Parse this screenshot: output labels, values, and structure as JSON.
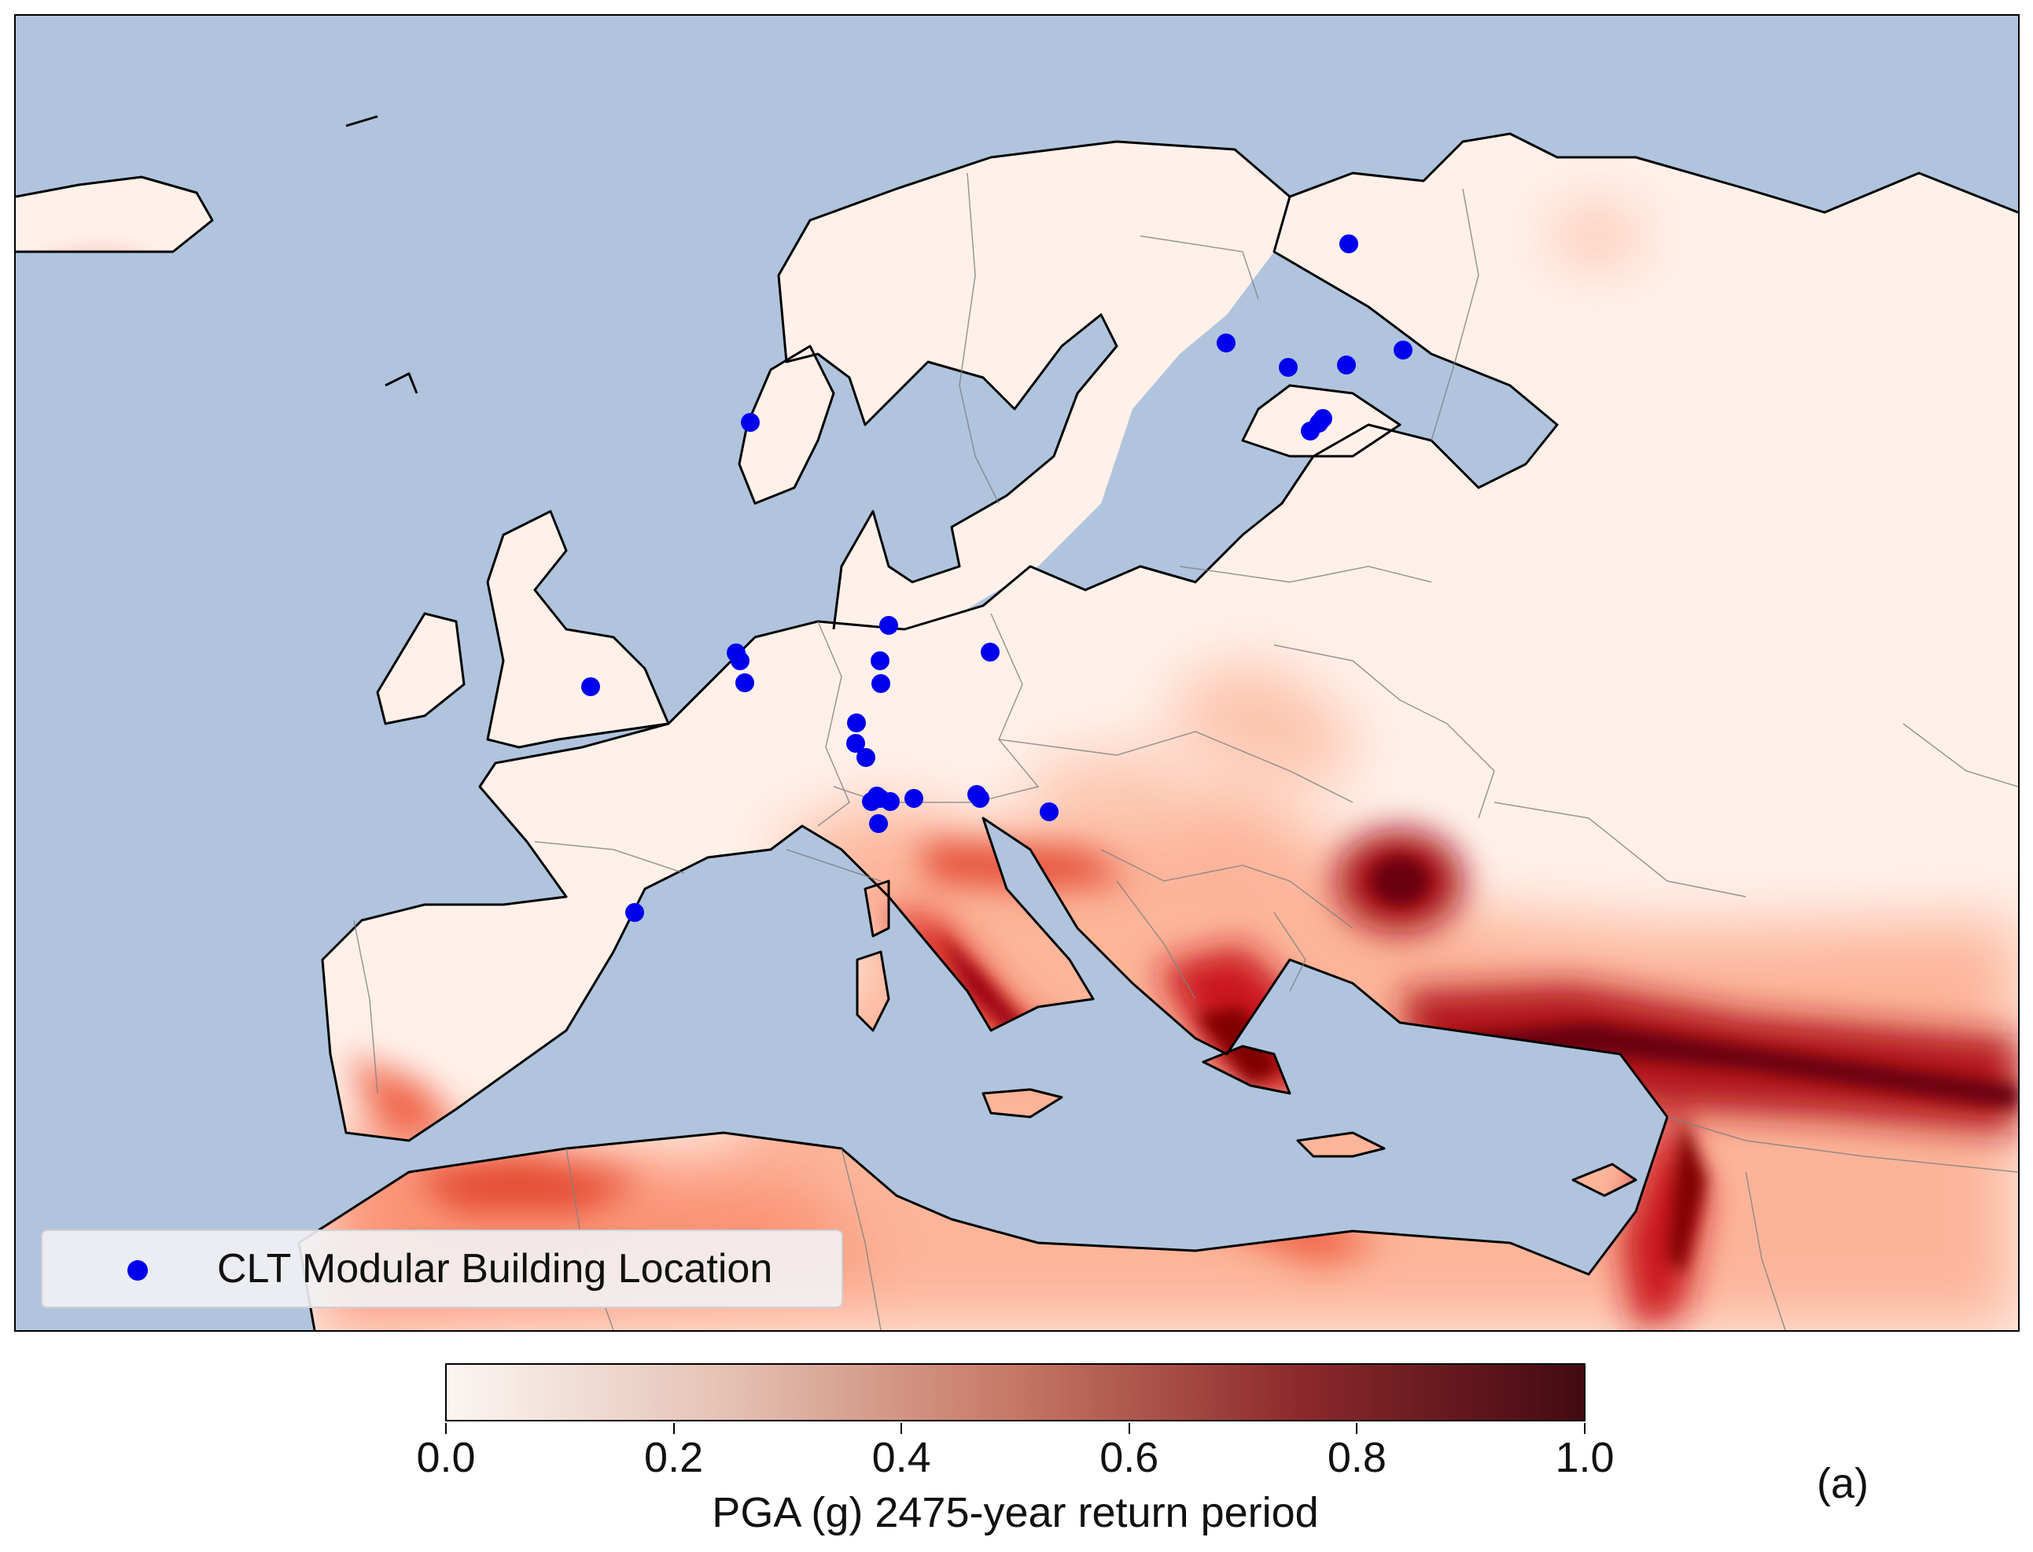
{
  "legend": {
    "label": "CLT Modular Building Location",
    "marker_color": "#0000ee"
  },
  "colorbar": {
    "title": "PGA (g) 2475-year return period",
    "ticks": [
      "0.0",
      "0.2",
      "0.4",
      "0.6",
      "0.8",
      "1.0"
    ],
    "range": [
      0.0,
      1.0
    ],
    "colormap": [
      "#fff5f0",
      "#fcbba1",
      "#fb6a4a",
      "#cb181d",
      "#67000d"
    ]
  },
  "panel_label": "(a)",
  "colors": {
    "sea": "#b0c4de",
    "coast": "#000000",
    "border": "#808080"
  }
}
